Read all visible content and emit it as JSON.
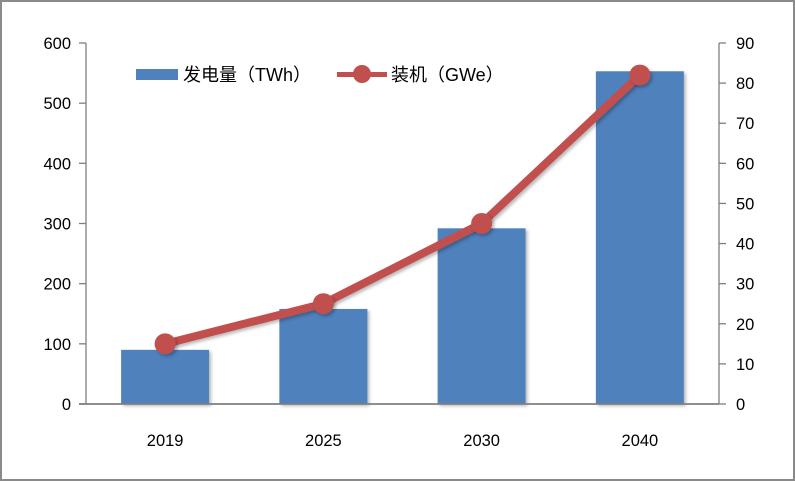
{
  "chart_data": {
    "type": "combo-bar-line",
    "categories": [
      "2019",
      "2025",
      "2030",
      "2040"
    ],
    "series": [
      {
        "name": "发电量（TWh）",
        "type": "bar",
        "axis": "left",
        "values": [
          90,
          158,
          292,
          553
        ],
        "color": "#4F81BD"
      },
      {
        "name": "装机（GWe）",
        "type": "line",
        "axis": "right",
        "values": [
          15,
          25,
          45,
          82
        ],
        "color": "#C0504D"
      }
    ],
    "left_axis": {
      "min": 0,
      "max": 600,
      "ticks": [
        0,
        100,
        200,
        300,
        400,
        500,
        600
      ]
    },
    "right_axis": {
      "min": 0,
      "max": 90,
      "ticks": [
        0,
        10,
        20,
        30,
        40,
        50,
        60,
        70,
        80,
        90
      ]
    },
    "grid": false,
    "legend_position": "top-center"
  },
  "legend": {
    "bar_label": "发电量（TWh）",
    "line_label": "装机（GWe）"
  },
  "colors": {
    "bar": "#4F81BD",
    "line": "#C0504D",
    "axis": "#7F7F7F",
    "text": "#000000",
    "border": "#8A8A8A",
    "background": "#FFFFFF"
  }
}
